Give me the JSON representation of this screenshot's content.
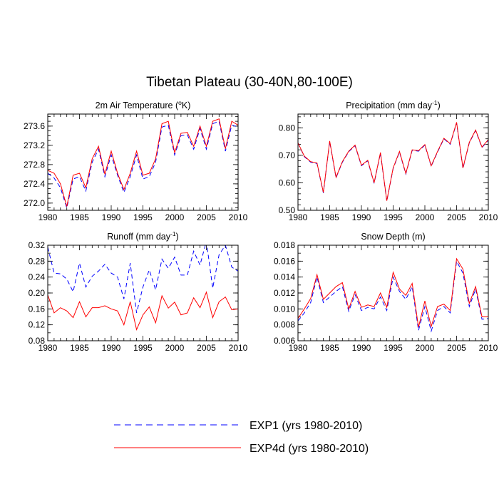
{
  "title": "Tibetan Plateau (30-40N,80-100E)",
  "legend": [
    {
      "label": "EXP1 (yrs 1980-2010)",
      "color": "#0000ff",
      "dash": "dashed"
    },
    {
      "label": "EXP4d (yrs 1980-2010)",
      "color": "#ff0000",
      "dash": "solid"
    }
  ],
  "chart_data": [
    {
      "type": "line",
      "title": "2m Air Temperature (",
      "title_sup": "o",
      "title_end": "K)",
      "xlim": [
        1980,
        2010
      ],
      "xticks": [
        1980,
        1985,
        1990,
        1995,
        2000,
        2005,
        2010
      ],
      "ylim": [
        271.85,
        273.85
      ],
      "yticks": [
        "272.0",
        "272.4",
        "272.8",
        "273.2",
        "273.6"
      ],
      "yminor_step": 0.1,
      "x": [
        1980,
        1981,
        1982,
        1983,
        1984,
        1985,
        1986,
        1987,
        1988,
        1989,
        1990,
        1991,
        1992,
        1993,
        1994,
        1995,
        1996,
        1997,
        1998,
        1999,
        2000,
        2001,
        2002,
        2003,
        2004,
        2005,
        2006,
        2007,
        2008,
        2009,
        2010
      ],
      "series": [
        {
          "name": "EXP1",
          "values": [
            272.62,
            272.52,
            272.32,
            271.9,
            272.5,
            272.55,
            272.25,
            272.85,
            273.12,
            272.55,
            273.0,
            272.58,
            272.22,
            272.55,
            273.0,
            272.5,
            272.55,
            272.85,
            273.58,
            273.62,
            273.0,
            273.4,
            273.42,
            273.12,
            273.55,
            273.12,
            273.65,
            273.7,
            273.08,
            273.62,
            273.58
          ]
        },
        {
          "name": "EXP4d",
          "values": [
            272.68,
            272.62,
            272.4,
            271.93,
            272.58,
            272.62,
            272.32,
            272.92,
            273.18,
            272.6,
            273.08,
            272.62,
            272.28,
            272.62,
            273.08,
            272.58,
            272.62,
            272.92,
            273.65,
            273.7,
            273.05,
            273.45,
            273.47,
            273.18,
            273.6,
            273.18,
            273.7,
            273.75,
            273.13,
            273.7,
            273.62
          ]
        }
      ]
    },
    {
      "type": "line",
      "title": "Precipitation (mm day",
      "title_sup": "-1",
      "title_end": ")",
      "xlim": [
        1980,
        2010
      ],
      "xticks": [
        1980,
        1985,
        1990,
        1995,
        2000,
        2005,
        2010
      ],
      "ylim": [
        0.5,
        0.85
      ],
      "yticks": [
        "0.50",
        "0.60",
        "0.70",
        "0.80"
      ],
      "yminor_step": 0.02,
      "x": [
        1980,
        1981,
        1982,
        1983,
        1984,
        1985,
        1986,
        1987,
        1988,
        1989,
        1990,
        1991,
        1992,
        1993,
        1994,
        1995,
        1996,
        1997,
        1998,
        1999,
        2000,
        2001,
        2002,
        2003,
        2004,
        2005,
        2006,
        2007,
        2008,
        2009,
        2010
      ],
      "series": [
        {
          "name": "EXP1",
          "values": [
            0.745,
            0.695,
            0.675,
            0.67,
            0.563,
            0.75,
            0.618,
            0.675,
            0.713,
            0.735,
            0.662,
            0.68,
            0.598,
            0.708,
            0.533,
            0.652,
            0.712,
            0.632,
            0.718,
            0.715,
            0.737,
            0.66,
            0.712,
            0.76,
            0.74,
            0.818,
            0.652,
            0.745,
            0.79,
            0.728,
            0.755
          ]
        },
        {
          "name": "EXP4d",
          "values": [
            0.745,
            0.697,
            0.677,
            0.672,
            0.565,
            0.752,
            0.62,
            0.677,
            0.715,
            0.737,
            0.664,
            0.682,
            0.6,
            0.71,
            0.535,
            0.654,
            0.714,
            0.634,
            0.72,
            0.717,
            0.739,
            0.662,
            0.714,
            0.762,
            0.742,
            0.82,
            0.654,
            0.747,
            0.792,
            0.73,
            0.757
          ]
        }
      ]
    },
    {
      "type": "line",
      "title": "Runoff (mm day",
      "title_sup": "-1",
      "title_end": ")",
      "xlim": [
        1980,
        2010
      ],
      "xticks": [
        1980,
        1985,
        1990,
        1995,
        2000,
        2005,
        2010
      ],
      "ylim": [
        0.08,
        0.32
      ],
      "yticks": [
        "0.08",
        "0.12",
        "0.16",
        "0.20",
        "0.24",
        "0.28",
        "0.32"
      ],
      "yminor_step": 0.02,
      "x": [
        1980,
        1981,
        1982,
        1983,
        1984,
        1985,
        1986,
        1987,
        1988,
        1989,
        1990,
        1991,
        1992,
        1993,
        1994,
        1995,
        1996,
        1997,
        1998,
        1999,
        2000,
        2001,
        2002,
        2003,
        2004,
        2005,
        2006,
        2007,
        2008,
        2009,
        2010
      ],
      "series": [
        {
          "name": "EXP1",
          "values": [
            0.315,
            0.25,
            0.248,
            0.235,
            0.203,
            0.275,
            0.215,
            0.242,
            0.255,
            0.272,
            0.25,
            0.24,
            0.185,
            0.275,
            0.15,
            0.215,
            0.258,
            0.208,
            0.285,
            0.262,
            0.29,
            0.245,
            0.245,
            0.305,
            0.27,
            0.33,
            0.212,
            0.296,
            0.32,
            0.265,
            0.255
          ]
        },
        {
          "name": "EXP4d",
          "values": [
            0.195,
            0.15,
            0.163,
            0.155,
            0.138,
            0.178,
            0.14,
            0.163,
            0.163,
            0.168,
            0.16,
            0.155,
            0.12,
            0.178,
            0.108,
            0.145,
            0.165,
            0.125,
            0.193,
            0.162,
            0.177,
            0.145,
            0.15,
            0.188,
            0.163,
            0.202,
            0.138,
            0.178,
            0.19,
            0.158,
            0.16
          ]
        }
      ]
    },
    {
      "type": "line",
      "title": "Snow Depth (m)",
      "title_sup": "",
      "title_end": "",
      "xlim": [
        1980,
        2010
      ],
      "xticks": [
        1980,
        1985,
        1990,
        1995,
        2000,
        2005,
        2010
      ],
      "ylim": [
        0.006,
        0.018
      ],
      "yticks": [
        "0.006",
        "0.008",
        "0.010",
        "0.012",
        "0.014",
        "0.016",
        "0.018"
      ],
      "yminor_step": 0.001,
      "x": [
        1980,
        1981,
        1982,
        1983,
        1984,
        1985,
        1986,
        1987,
        1988,
        1989,
        1990,
        1991,
        1992,
        1993,
        1994,
        1995,
        1996,
        1997,
        1998,
        1999,
        2000,
        2001,
        2002,
        2003,
        2004,
        2005,
        2006,
        2007,
        2008,
        2009,
        2010
      ],
      "series": [
        {
          "name": "EXP1",
          "values": [
            0.0085,
            0.0095,
            0.0108,
            0.014,
            0.0108,
            0.0115,
            0.0122,
            0.0128,
            0.0097,
            0.0118,
            0.0098,
            0.0102,
            0.01,
            0.0115,
            0.0098,
            0.014,
            0.0122,
            0.0112,
            0.0128,
            0.0073,
            0.0103,
            0.0072,
            0.0098,
            0.0103,
            0.0095,
            0.016,
            0.0145,
            0.0103,
            0.0125,
            0.0087,
            0.0088
          ]
        },
        {
          "name": "EXP4d",
          "values": [
            0.0088,
            0.01,
            0.0113,
            0.0143,
            0.0112,
            0.012,
            0.0128,
            0.0133,
            0.01,
            0.0122,
            0.0102,
            0.0105,
            0.0103,
            0.012,
            0.0102,
            0.0146,
            0.0125,
            0.0117,
            0.0132,
            0.0077,
            0.011,
            0.0078,
            0.0103,
            0.0106,
            0.0098,
            0.0163,
            0.015,
            0.0107,
            0.0128,
            0.009,
            0.009
          ]
        }
      ]
    }
  ]
}
